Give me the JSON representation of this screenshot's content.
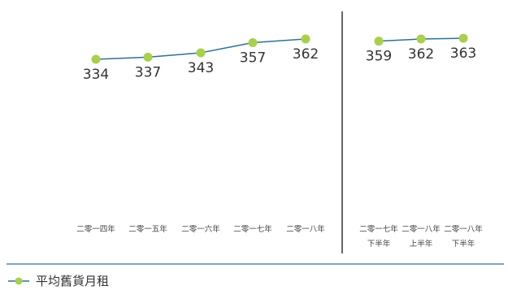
{
  "colors": {
    "line": "#2f6f98",
    "marker": "#a9d04a",
    "divider": "#333333",
    "rule": "#2f6f98"
  },
  "chart_data": [
    {
      "type": "line",
      "categories": [
        "二零一四年",
        "二零一五年",
        "二零一六年",
        "二零一七年",
        "二零一八年"
      ],
      "series": [
        {
          "values": [
            334,
            337,
            343,
            357,
            362
          ]
        }
      ],
      "value_labels": [
        "334",
        "337",
        "343",
        "357",
        "362"
      ],
      "grid": false
    },
    {
      "type": "line",
      "categories": [
        [
          "二零一七年",
          "下半年"
        ],
        [
          "二零一八年",
          "上半年"
        ],
        [
          "二零一八年",
          "下半年"
        ]
      ],
      "series": [
        {
          "values": [
            359,
            362,
            363
          ]
        }
      ],
      "value_labels": [
        "359",
        "362",
        "363"
      ],
      "grid": false
    }
  ],
  "legend": {
    "label": "平均舊貨月租",
    "position": "bottom-left"
  }
}
